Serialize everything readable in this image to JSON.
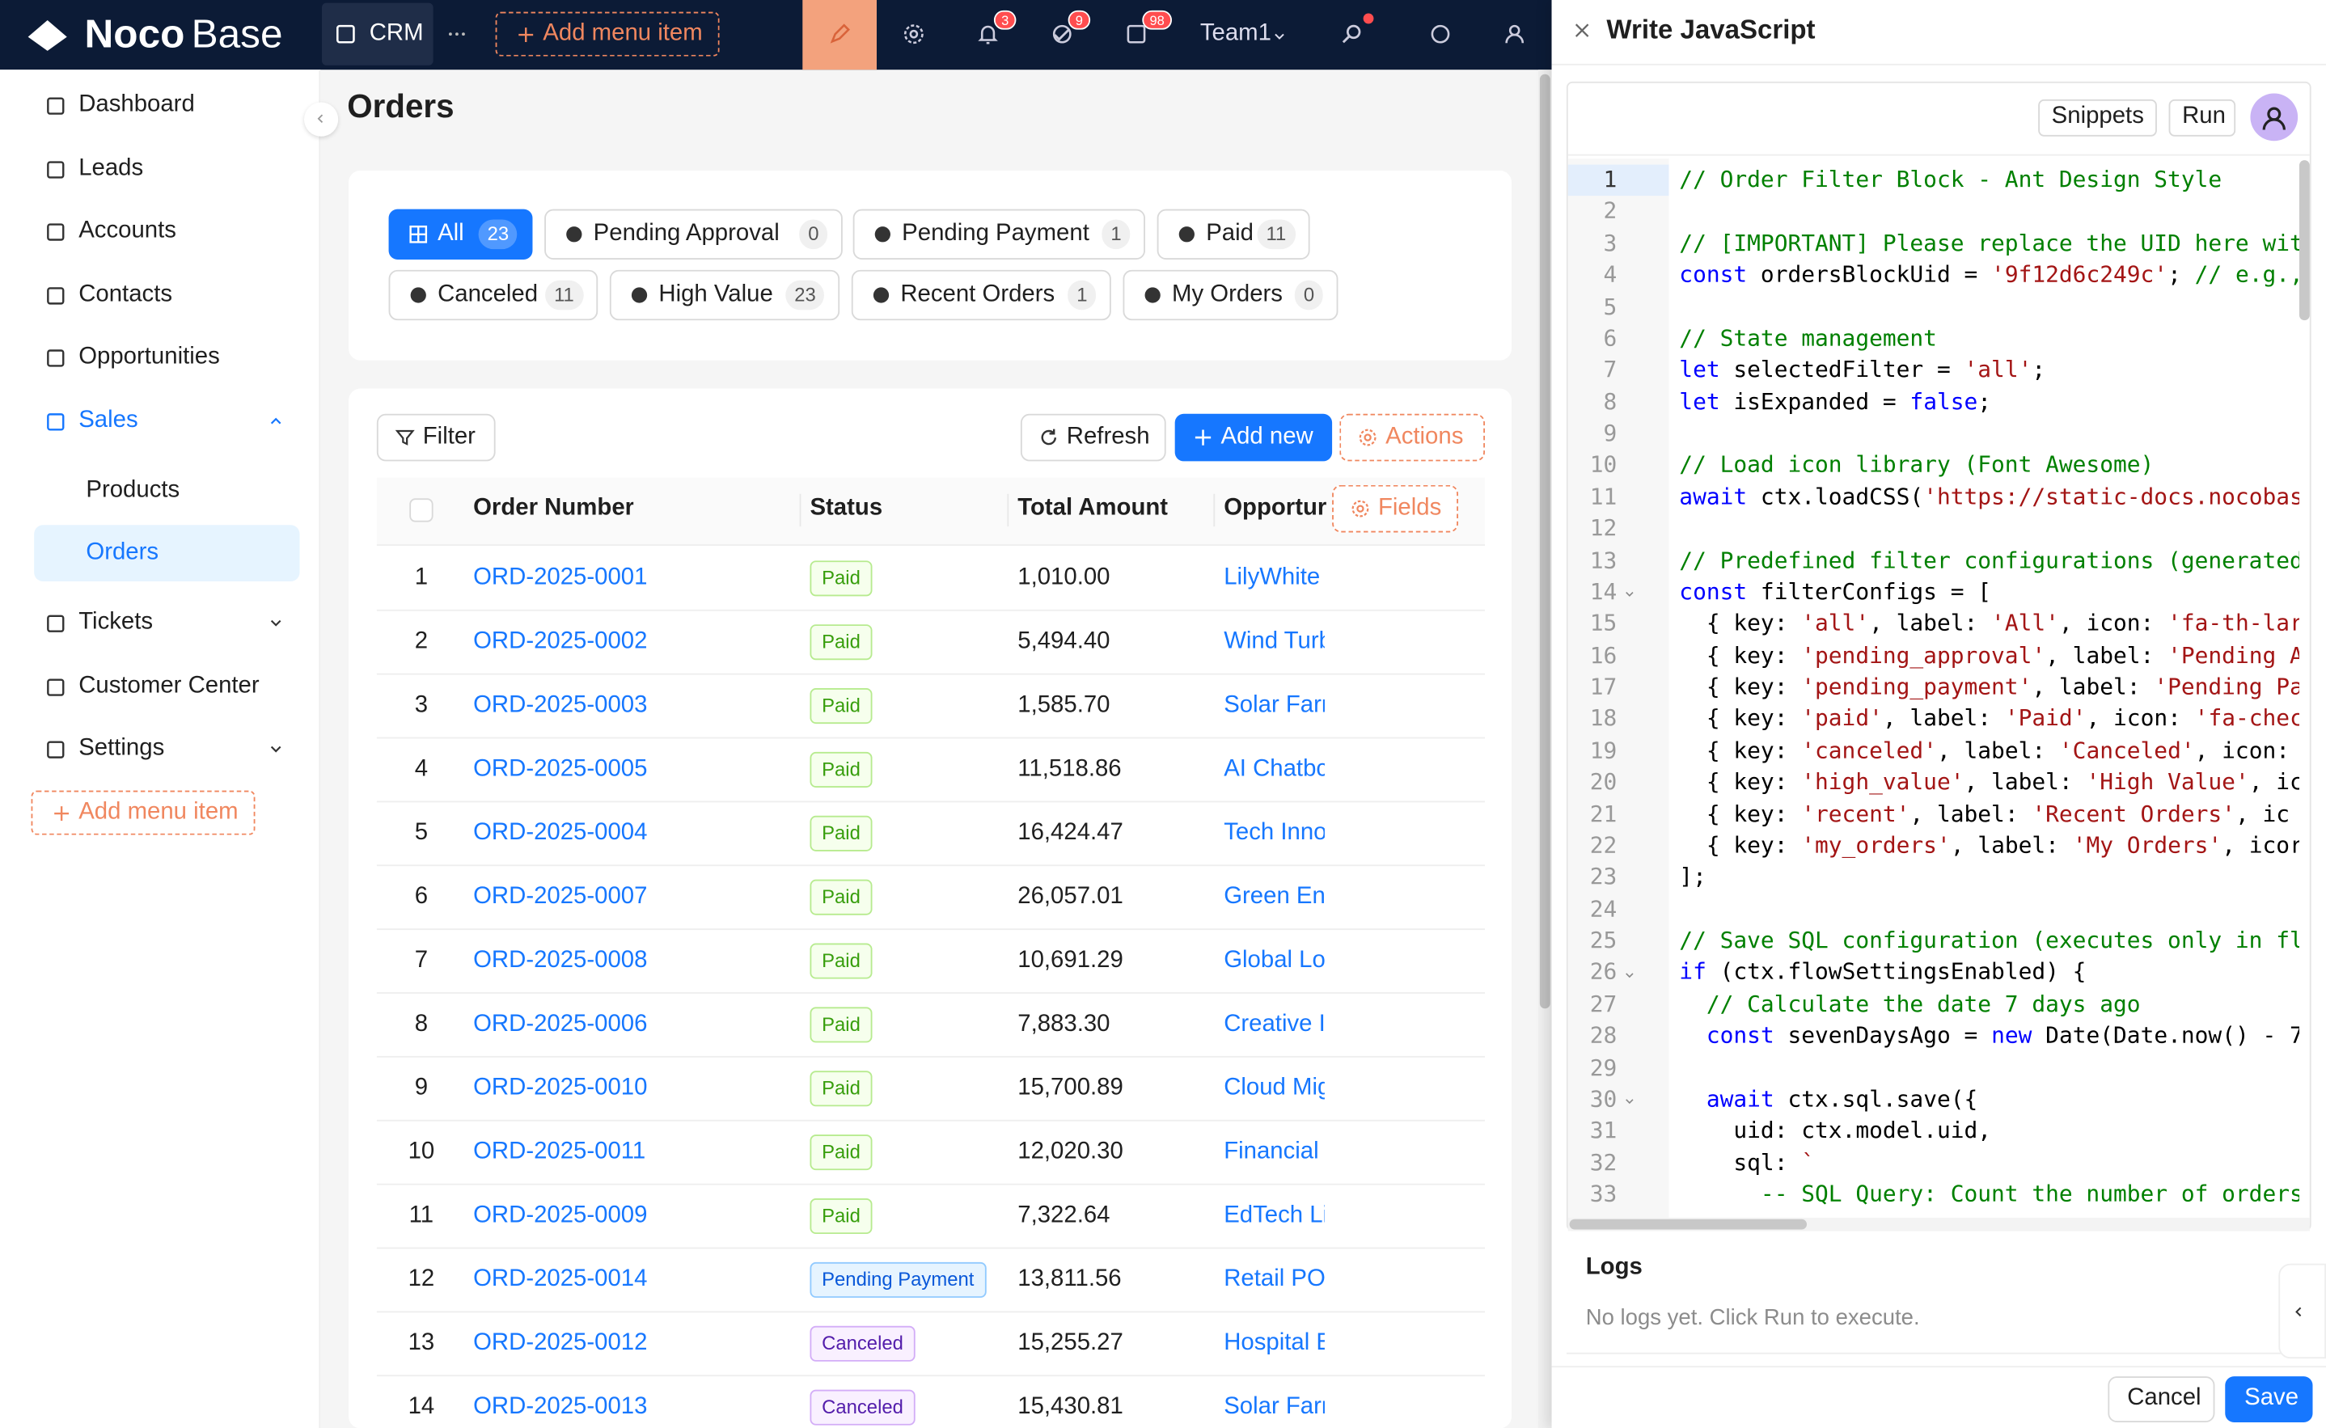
{
  "topbar": {
    "brand_bold": "Noco",
    "brand_light": "Base",
    "app": "CRM",
    "add_menu": "Add menu item",
    "badges": [
      3,
      9,
      98
    ],
    "team": "Team1"
  },
  "sidebar": {
    "items": [
      {
        "label": "Dashboard"
      },
      {
        "label": "Leads"
      },
      {
        "label": "Accounts"
      },
      {
        "label": "Contacts"
      },
      {
        "label": "Opportunities"
      },
      {
        "label": "Sales"
      },
      {
        "label": "Products"
      },
      {
        "label": "Orders"
      },
      {
        "label": "Tickets"
      },
      {
        "label": "Customer Center"
      },
      {
        "label": "Settings"
      }
    ],
    "add_menu": "Add menu item"
  },
  "page": {
    "title": "Orders"
  },
  "filters": [
    {
      "label": "All",
      "count": 23
    },
    {
      "label": "Pending Approval",
      "count": 0
    },
    {
      "label": "Pending Payment",
      "count": 1
    },
    {
      "label": "Paid",
      "count": 11
    },
    {
      "label": "Canceled",
      "count": 11
    },
    {
      "label": "High Value",
      "count": 23
    },
    {
      "label": "Recent Orders",
      "count": 1
    },
    {
      "label": "My Orders",
      "count": 0
    }
  ],
  "toolbar": {
    "filter": "Filter",
    "refresh": "Refresh",
    "add_new": "Add new",
    "actions": "Actions",
    "fields": "Fields"
  },
  "table": {
    "columns": [
      "Order Number",
      "Status",
      "Total Amount",
      "Opportur"
    ],
    "rows": [
      [
        1,
        "ORD-2025-0001",
        "Paid",
        "1,010.00",
        "LilyWhite"
      ],
      [
        2,
        "ORD-2025-0002",
        "Paid",
        "5,494.40",
        "Wind Turb"
      ],
      [
        3,
        "ORD-2025-0003",
        "Paid",
        "1,585.70",
        "Solar Farr"
      ],
      [
        4,
        "ORD-2025-0005",
        "Paid",
        "11,518.86",
        "AI Chatbc"
      ],
      [
        5,
        "ORD-2025-0004",
        "Paid",
        "16,424.47",
        "Tech Inno"
      ],
      [
        6,
        "ORD-2025-0007",
        "Paid",
        "26,057.01",
        "Green Ene"
      ],
      [
        7,
        "ORD-2025-0008",
        "Paid",
        "10,691.29",
        "Global Lo"
      ],
      [
        8,
        "ORD-2025-0006",
        "Paid",
        "7,883.30",
        "Creative I"
      ],
      [
        9,
        "ORD-2025-0010",
        "Paid",
        "15,700.89",
        "Cloud Mig"
      ],
      [
        10,
        "ORD-2025-0011",
        "Paid",
        "12,020.30",
        "Financial"
      ],
      [
        11,
        "ORD-2025-0009",
        "Paid",
        "7,322.64",
        "EdTech Li"
      ],
      [
        12,
        "ORD-2025-0014",
        "Pending Payment",
        "13,811.56",
        "Retail PO"
      ],
      [
        13,
        "ORD-2025-0012",
        "Canceled",
        "15,255.27",
        "Hospital E"
      ],
      [
        14,
        "ORD-2025-0013",
        "Canceled",
        "15,430.81",
        "Solar Farr"
      ]
    ]
  },
  "editor": {
    "title": "Write JavaScript",
    "snippets": "Snippets",
    "run": "Run",
    "lines": [
      {
        "n": 1,
        "text": "// Order Filter Block - Ant Design Style"
      },
      {
        "n": 2
      },
      {
        "n": 3,
        "text": "// [IMPORTANT] Please replace the UID here wit"
      },
      {
        "n": 4,
        "text": "const ordersBlockUid = '9f12d6c249c'; // e.g.,"
      },
      {
        "n": 5
      },
      {
        "n": 6,
        "text": "// State management"
      },
      {
        "n": 7,
        "text": "let selectedFilter = 'all';"
      },
      {
        "n": 8,
        "text": "let isExpanded = false;"
      },
      {
        "n": 9
      },
      {
        "n": 10,
        "text": "// Load icon library (Font Awesome)"
      },
      {
        "n": 11,
        "text": "await ctx.loadCSS('https://static-docs.nocobas"
      },
      {
        "n": 12
      },
      {
        "n": 13,
        "text": "// Predefined filter configurations (generated"
      },
      {
        "n": 14,
        "text": "const filterConfigs = ["
      },
      {
        "n": 15,
        "text": "  { key: 'all', label: 'All', icon: 'fa-th-lar"
      },
      {
        "n": 16,
        "text": "  { key: 'pending_approval', label: 'Pending A"
      },
      {
        "n": 17,
        "text": "  { key: 'pending_payment', label: 'Pending Pa"
      },
      {
        "n": 18,
        "text": "  { key: 'paid', label: 'Paid', icon: 'fa-chec"
      },
      {
        "n": 19,
        "text": "  { key: 'canceled', label: 'Canceled', icon:"
      },
      {
        "n": 20,
        "text": "  { key: 'high_value', label: 'High Value', ic"
      },
      {
        "n": 21,
        "text": "  { key: 'recent', label: 'Recent Orders', ic"
      },
      {
        "n": 22,
        "text": "  { key: 'my_orders', label: 'My Orders', icor"
      },
      {
        "n": 23,
        "text": "];"
      },
      {
        "n": 24
      },
      {
        "n": 25,
        "text": "// Save SQL configuration (executes only in fl"
      },
      {
        "n": 26,
        "text": "if (ctx.flowSettingsEnabled) {"
      },
      {
        "n": 27,
        "text": "  // Calculate the date 7 days ago"
      },
      {
        "n": 28,
        "text": "  const sevenDaysAgo = new Date(Date.now() - 7"
      },
      {
        "n": 29
      },
      {
        "n": 30,
        "text": "  await ctx.sql.save({"
      },
      {
        "n": 31,
        "text": "    uid: ctx.model.uid,"
      },
      {
        "n": 32,
        "text": "    sql: `"
      },
      {
        "n": 33,
        "text": "      -- SQL Query: Count the number of orders"
      }
    ],
    "logs_title": "Logs",
    "logs_message": "No logs yet. Click Run to execute.",
    "cancel": "Cancel",
    "save": "Save"
  }
}
